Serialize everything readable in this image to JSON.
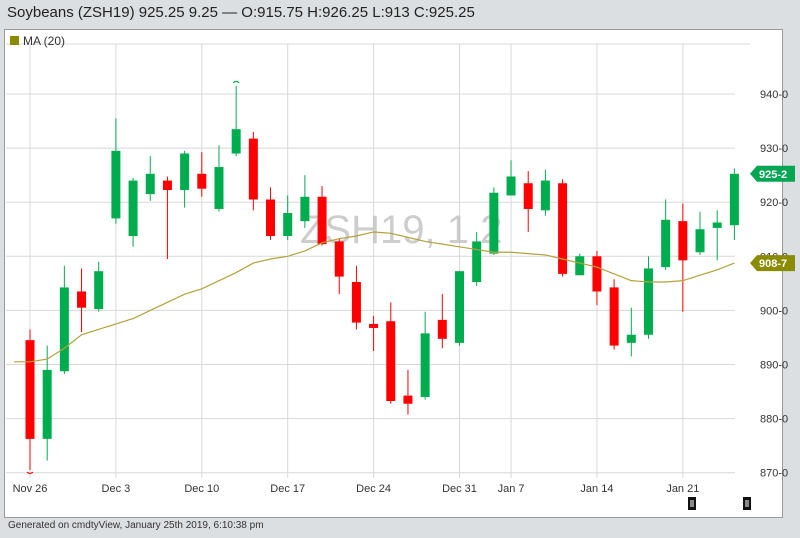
{
  "header": {
    "title": "Soybeans (ZSH19) 925.25 9.25 — O:915.75 H:926.25 L:913 C:925.25"
  },
  "legend": {
    "label": "MA (20)",
    "color": "#8b8b00"
  },
  "watermark": "ZSH19, 1 2",
  "footer": {
    "text": "Generated on cmdtyView, January 25th 2019, 6:10:38 pm"
  },
  "badges": {
    "last_price": "925-2",
    "last_price_color": "#00a651",
    "ma_value": "908-7",
    "ma_color": "#8b8b00"
  },
  "colors": {
    "up": "#00ad4e",
    "down": "#ff0000",
    "ma_line": "#b5a23a",
    "grid": "#d8d8d8"
  },
  "chart_data": {
    "type": "candlestick",
    "title": "Soybeans (ZSH19) 925.25 9.25 — O:915.75 H:926.25 L:913 C:925.25",
    "xlabel": "",
    "ylabel": "",
    "ylim": [
      868,
      946
    ],
    "yticks": [
      "870-0",
      "880-0",
      "890-0",
      "900-0",
      "910-0",
      "920-0",
      "930-0",
      "940-0"
    ],
    "ytick_values": [
      870,
      880,
      890,
      900,
      910,
      920,
      930,
      940
    ],
    "xticks": [
      "Nov 26",
      "Dec 3",
      "Dec 10",
      "Dec 17",
      "Dec 24",
      "Dec 31",
      "Jan 7",
      "Jan 14",
      "Jan 21"
    ],
    "xtick_index": [
      0,
      5,
      10,
      15,
      20,
      25,
      28,
      33,
      38
    ],
    "grid": true,
    "legend": [
      "MA (20)"
    ],
    "candles": [
      {
        "o": 894.5,
        "h": 896.5,
        "l": 870.5,
        "c": 876.25
      },
      {
        "o": 876.25,
        "h": 893.5,
        "l": 872.25,
        "c": 889.0
      },
      {
        "o": 888.75,
        "h": 908.25,
        "l": 888.25,
        "c": 904.25
      },
      {
        "o": 903.5,
        "h": 907.75,
        "l": 896.0,
        "c": 900.5
      },
      {
        "o": 900.25,
        "h": 909.0,
        "l": 899.75,
        "c": 907.25
      },
      {
        "o": 917.0,
        "h": 935.5,
        "l": 916.0,
        "c": 929.5
      },
      {
        "o": 913.75,
        "h": 924.5,
        "l": 911.75,
        "c": 924.0
      },
      {
        "o": 921.5,
        "h": 928.5,
        "l": 920.25,
        "c": 925.25
      },
      {
        "o": 924.0,
        "h": 924.75,
        "l": 909.5,
        "c": 922.25
      },
      {
        "o": 922.25,
        "h": 929.5,
        "l": 919.0,
        "c": 929.0
      },
      {
        "o": 925.25,
        "h": 929.25,
        "l": 921.0,
        "c": 922.5
      },
      {
        "o": 918.75,
        "h": 930.5,
        "l": 918.25,
        "c": 926.5
      },
      {
        "o": 929.0,
        "h": 941.5,
        "l": 928.5,
        "c": 933.5
      },
      {
        "o": 931.75,
        "h": 933.0,
        "l": 918.5,
        "c": 920.5
      },
      {
        "o": 920.5,
        "h": 922.75,
        "l": 913.0,
        "c": 913.75
      },
      {
        "o": 913.75,
        "h": 921.25,
        "l": 913.0,
        "c": 918.0
      },
      {
        "o": 916.5,
        "h": 925.0,
        "l": 915.25,
        "c": 921.0
      },
      {
        "o": 921.0,
        "h": 923.0,
        "l": 912.0,
        "c": 912.25
      },
      {
        "o": 912.75,
        "h": 913.25,
        "l": 903.0,
        "c": 906.25
      },
      {
        "o": 905.25,
        "h": 908.25,
        "l": 896.5,
        "c": 897.75
      },
      {
        "o": 897.5,
        "h": 899.0,
        "l": 892.5,
        "c": 896.75
      },
      {
        "o": 898.0,
        "h": 901.5,
        "l": 882.75,
        "c": 883.25
      },
      {
        "o": 884.25,
        "h": 889.0,
        "l": 880.75,
        "c": 882.75
      },
      {
        "o": 884.0,
        "h": 899.75,
        "l": 883.5,
        "c": 895.75
      },
      {
        "o": 898.25,
        "h": 903.0,
        "l": 893.0,
        "c": 894.75
      },
      {
        "o": 894.0,
        "h": 905.25,
        "l": 893.5,
        "c": 907.25
      },
      {
        "o": 905.25,
        "h": 914.5,
        "l": 904.5,
        "c": 912.75
      },
      {
        "o": 910.5,
        "h": 922.75,
        "l": 910.25,
        "c": 921.75
      },
      {
        "o": 921.25,
        "h": 927.75,
        "l": 921.25,
        "c": 924.75
      },
      {
        "o": 923.5,
        "h": 925.75,
        "l": 914.5,
        "c": 918.75
      },
      {
        "o": 918.5,
        "h": 926.0,
        "l": 917.5,
        "c": 924.0
      },
      {
        "o": 923.5,
        "h": 924.25,
        "l": 906.25,
        "c": 906.75
      },
      {
        "o": 906.5,
        "h": 910.5,
        "l": 906.5,
        "c": 910.0
      },
      {
        "o": 910.0,
        "h": 911.0,
        "l": 901.0,
        "c": 903.5
      },
      {
        "o": 904.25,
        "h": 905.75,
        "l": 892.75,
        "c": 893.5
      },
      {
        "o": 894.0,
        "h": 900.5,
        "l": 891.5,
        "c": 895.5
      },
      {
        "o": 895.5,
        "h": 910.0,
        "l": 894.75,
        "c": 907.75
      },
      {
        "o": 908.0,
        "h": 920.5,
        "l": 907.5,
        "c": 916.75
      },
      {
        "o": 916.5,
        "h": 919.75,
        "l": 899.75,
        "c": 909.25
      },
      {
        "o": 910.75,
        "h": 918.25,
        "l": 910.25,
        "c": 915.0
      },
      {
        "o": 915.25,
        "h": 918.5,
        "l": 909.25,
        "c": 916.25
      },
      {
        "o": 915.75,
        "h": 926.25,
        "l": 913.0,
        "c": 925.25
      }
    ],
    "ma20": [
      890.5,
      891.0,
      893.0,
      895.5,
      896.5,
      897.5,
      898.5,
      900.0,
      901.5,
      903.0,
      904.0,
      905.5,
      907.0,
      908.75,
      909.5,
      910.0,
      911.0,
      912.5,
      913.25,
      913.75,
      914.5,
      914.25,
      913.5,
      912.75,
      912.25,
      911.75,
      911.25,
      910.75,
      910.75,
      910.5,
      910.25,
      909.5,
      908.75,
      908.0,
      906.75,
      905.5,
      905.25,
      905.25,
      905.5,
      906.5,
      907.5,
      908.75
    ]
  }
}
